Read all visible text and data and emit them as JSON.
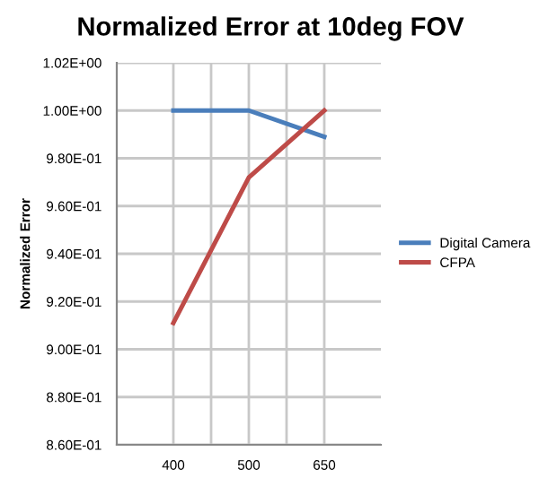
{
  "chart_data": {
    "type": "line",
    "title": "Normalized Error at 10deg FOV",
    "ylabel": "Normalized Error",
    "categories": [
      "400",
      "500",
      "650"
    ],
    "series": [
      {
        "name": "Digital Camera",
        "color": "#4a7ebb",
        "values": [
          1.0,
          1.0,
          0.989
        ]
      },
      {
        "name": "CFPA",
        "color": "#be4b48",
        "values": [
          0.911,
          0.972,
          1.0
        ]
      }
    ],
    "ylim": [
      0.86,
      1.02
    ],
    "yticks": [
      {
        "value": 0.86,
        "label": "8.60E-01"
      },
      {
        "value": 0.88,
        "label": "8.80E-01"
      },
      {
        "value": 0.9,
        "label": "9.00E-01"
      },
      {
        "value": 0.92,
        "label": "9.20E-01"
      },
      {
        "value": 0.94,
        "label": "9.40E-01"
      },
      {
        "value": 0.96,
        "label": "9.60E-01"
      },
      {
        "value": 0.98,
        "label": "9.80E-01"
      },
      {
        "value": 1.0,
        "label": "1.00E+00"
      },
      {
        "value": 1.02,
        "label": "1.02E+00"
      }
    ],
    "grid": true,
    "legend": "right",
    "marker": "none",
    "line_style": "solid"
  }
}
